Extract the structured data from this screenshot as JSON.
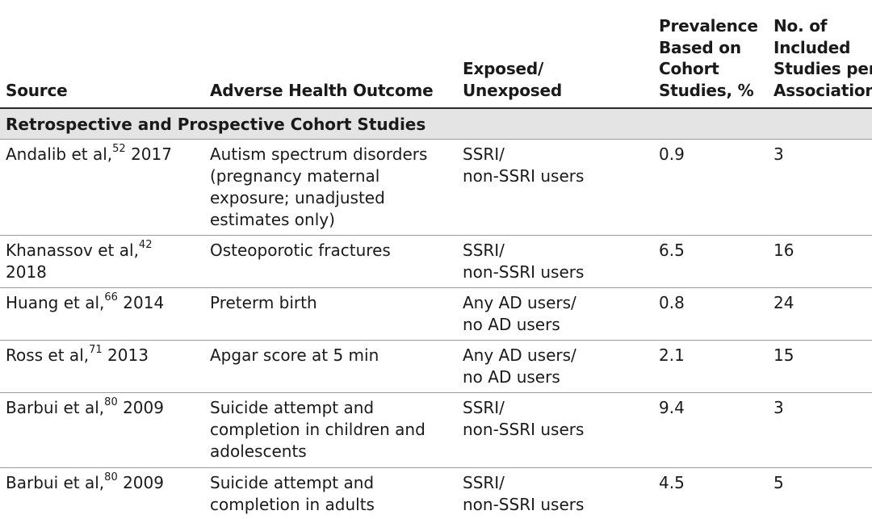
{
  "headers": {
    "source": "Source",
    "outcome": "Adverse Health Outcome",
    "exposed": "Exposed/\nUnexposed",
    "prevalence": "Prevalence\nBased on\nCohort\nStudies, %",
    "studies": "No. of\nIncluded\nStudies per\nAssociation"
  },
  "section": {
    "label": "Retrospective and Prospective Cohort Studies"
  },
  "rows": [
    {
      "author": "Andalib et al,",
      "ref": "52",
      "year": "2017",
      "outcome": "Autism spectrum disorders\n(pregnancy maternal\nexposure; unadjusted\nestimates only)",
      "exposed": "SSRI/\nnon-SSRI users",
      "prevalence": "0.9",
      "studies": "3"
    },
    {
      "author": "Khanassov et al,",
      "ref": "42",
      "year": "2018",
      "outcome": "Osteoporotic fractures",
      "exposed": "SSRI/\nnon-SSRI users",
      "prevalence": "6.5",
      "studies": "16"
    },
    {
      "author": "Huang et al,",
      "ref": "66",
      "year": "2014",
      "outcome": "Preterm birth",
      "exposed": "Any AD users/\nno AD users",
      "prevalence": "0.8",
      "studies": "24"
    },
    {
      "author": "Ross et al,",
      "ref": "71",
      "year": "2013",
      "outcome": "Apgar score at 5 min",
      "exposed": "Any AD users/\nno AD users",
      "prevalence": "2.1",
      "studies": "15"
    },
    {
      "author": "Barbui et al,",
      "ref": "80",
      "year": "2009",
      "outcome": "Suicide attempt and\ncompletion in children and\nadolescents",
      "exposed": "SSRI/\nnon-SSRI users",
      "prevalence": "9.4",
      "studies": "3"
    },
    {
      "author": "Barbui et al,",
      "ref": "80",
      "year": "2009",
      "outcome": "Suicide attempt and\ncompletion in adults",
      "exposed": "SSRI/\nnon-SSRI users",
      "prevalence": "4.5",
      "studies": "5"
    }
  ]
}
